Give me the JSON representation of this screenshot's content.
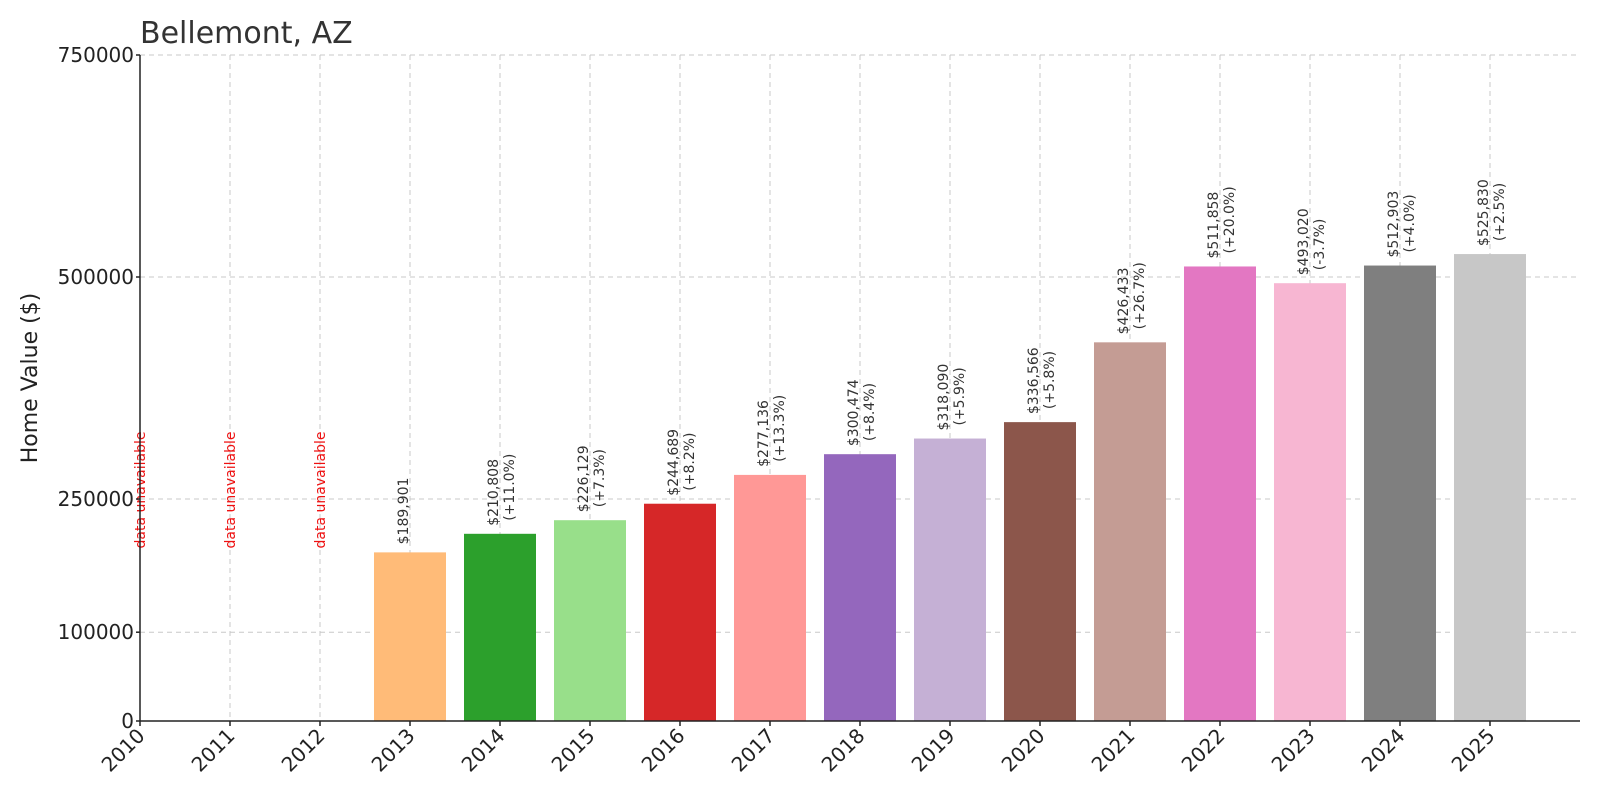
{
  "chart_data": {
    "type": "bar",
    "title": "Bellemont, AZ",
    "xlabel": "",
    "ylabel": "Home Value ($)",
    "ylim": [
      0,
      750000
    ],
    "yticks": [
      0,
      100000,
      250000,
      500000,
      750000
    ],
    "yticks_text": [
      "0",
      "100000",
      "250000",
      "500000",
      "750000"
    ],
    "grid": true,
    "categories": [
      "2010",
      "2011",
      "2012",
      "2013",
      "2014",
      "2015",
      "2016",
      "2017",
      "2018",
      "2019",
      "2020",
      "2021",
      "2022",
      "2023",
      "2024",
      "2025"
    ],
    "values": [
      null,
      null,
      null,
      189901,
      210808,
      226129,
      244689,
      277136,
      300474,
      318090,
      336566,
      426433,
      511858,
      493020,
      512903,
      525830
    ],
    "value_labels": [
      "",
      "",
      "",
      "$189,901",
      "$210,808",
      "$226,129",
      "$244,689",
      "$277,136",
      "$300,474",
      "$318,090",
      "$336,566",
      "$426,433",
      "$511,858",
      "$493,020",
      "$512,903",
      "$525,830"
    ],
    "change_labels": [
      "",
      "",
      "",
      "",
      "(+11.0%)",
      "(+7.3%)",
      "(+8.2%)",
      "(+13.3%)",
      "(+8.4%)",
      "(+5.9%)",
      "(+5.8%)",
      "(+26.7%)",
      "(+20.0%)",
      "(-3.7%)",
      "(+4.0%)",
      "(+2.5%)"
    ],
    "unavailable_label": "data unavailable",
    "colors": [
      "#1f77b4",
      "#ff7f0e",
      "#aec7e8",
      "#ffbb78",
      "#2ca02c",
      "#98df8a",
      "#d62728",
      "#ff9896",
      "#9467bd",
      "#c5b0d5",
      "#8c564b",
      "#c49c94",
      "#e377c2",
      "#f7b6d2",
      "#7f7f7f",
      "#c7c7c7"
    ],
    "unavailable_color": "#ee1111"
  }
}
